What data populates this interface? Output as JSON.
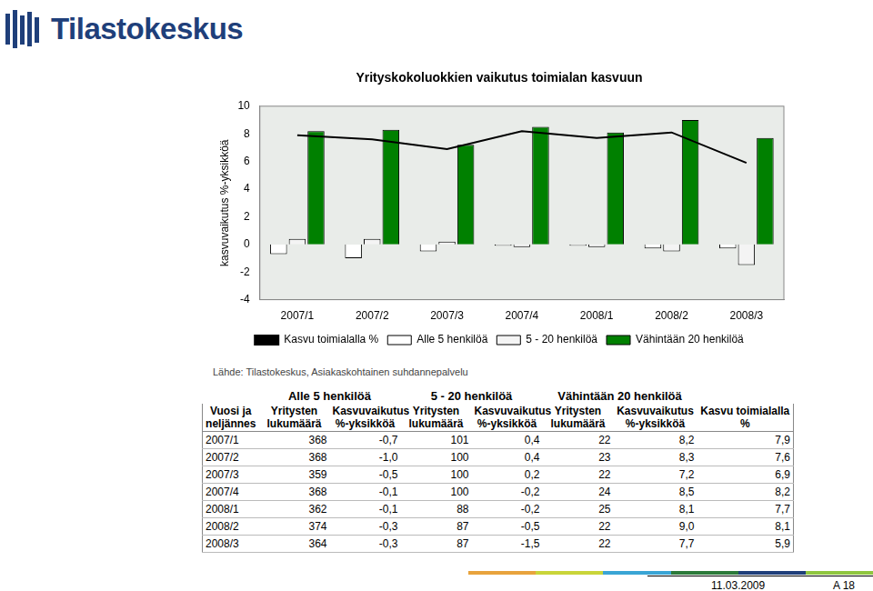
{
  "header": {
    "logo": "Tilastokeskus"
  },
  "chart_data": {
    "type": "bar",
    "title": "Yrityskokoluokkien vaikutus toimialan kasvuun",
    "y_label": "kasvuvaikutus %-yksikköä",
    "categories": [
      "2007/1",
      "2007/2",
      "2007/3",
      "2007/4",
      "2008/1",
      "2008/2",
      "2008/3"
    ],
    "series": [
      {
        "name": "Alle 5 henkilöä",
        "color": "#ffffff",
        "values": [
          -0.7,
          -1.0,
          -0.5,
          -0.1,
          -0.1,
          -0.3,
          -0.3
        ]
      },
      {
        "name": "5 - 20 henkilöä",
        "color": "#f4f4f4",
        "values": [
          0.4,
          0.4,
          0.2,
          -0.2,
          -0.2,
          -0.5,
          -1.5
        ]
      },
      {
        "name": "Vähintään 20 henkilöä",
        "color": "#008000",
        "values": [
          8.2,
          8.3,
          7.2,
          8.5,
          8.1,
          9.0,
          7.7
        ]
      },
      {
        "name": "Kasvu toimialalla %",
        "color": "#000000",
        "type": "line",
        "values": [
          7.9,
          7.6,
          6.9,
          8.2,
          7.7,
          8.1,
          5.9
        ]
      }
    ],
    "ylim": [
      -4,
      10
    ],
    "yticks": [
      -4,
      -2,
      0,
      2,
      4,
      6,
      8,
      10
    ],
    "grid": false,
    "legend": "bottom"
  },
  "source": "Lähde: Tilastokeskus, Asiakaskohtainen suhdannepalvelu",
  "table": {
    "group_headers": [
      "Alle 5 henkilöä",
      "5 - 20 henkilöä",
      "Vähintään 20 henkilöä"
    ],
    "columns": [
      "Vuosi ja neljännes",
      "Yritysten lukumäärä",
      "Kasvuvaikutus %-yksikköä",
      "Yritysten lukumäärä",
      "Kasvuvaikutus %-yksikköä",
      "Yritysten lukumäärä",
      "Kasvuvaikutus %-yksikköä",
      "Kasvu toimialalla %"
    ],
    "rows": [
      [
        "2007/1",
        "368",
        "-0,7",
        "101",
        "0,4",
        "22",
        "8,2",
        "7,9"
      ],
      [
        "2007/2",
        "368",
        "-1,0",
        "100",
        "0,4",
        "23",
        "8,3",
        "7,6"
      ],
      [
        "2007/3",
        "359",
        "-0,5",
        "100",
        "0,2",
        "22",
        "7,2",
        "6,9"
      ],
      [
        "2007/4",
        "368",
        "-0,1",
        "100",
        "-0,2",
        "24",
        "8,5",
        "8,2"
      ],
      [
        "2008/1",
        "362",
        "-0,1",
        "88",
        "-0,2",
        "25",
        "8,1",
        "7,7"
      ],
      [
        "2008/2",
        "374",
        "-0,3",
        "87",
        "-0,5",
        "22",
        "9,0",
        "8,1"
      ],
      [
        "2008/3",
        "364",
        "-0,3",
        "87",
        "-1,5",
        "22",
        "7,7",
        "5,9"
      ]
    ]
  },
  "footer": {
    "date": "11.03.2009",
    "page": "A 18"
  }
}
